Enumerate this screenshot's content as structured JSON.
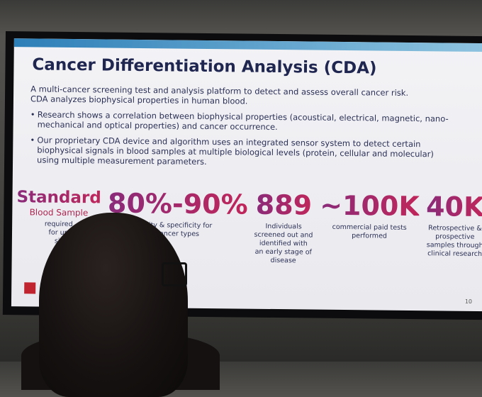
{
  "slide": {
    "title": "Cancer Differentiation Analysis (CDA)",
    "intro": [
      "A multi-cancer screening test and analysis platform to detect and assess overall cancer risk.",
      "CDA analyzes biophysical properties in human blood."
    ],
    "bullets": [
      "Research shows a correlation between biophysical properties (acoustical, electrical, magnetic, nano-mechanical and optical properties) and cancer occurrence.",
      "Our proprietary CDA device and algorithm uses an integrated sensor system to detect certain biophysical signals in blood samples at multiple biological levels (protein, cellular and molecular) using multiple measurement parameters."
    ],
    "stats": [
      {
        "big": "Standard",
        "sub": "Blood Sample",
        "caption": [
          "required",
          "for up",
          "sit"
        ]
      },
      {
        "big": "80%-90%",
        "caption": [
          "ivity & specificity for",
          "cancer types"
        ]
      },
      {
        "big": "889",
        "caption": [
          "Individuals",
          "screened out and",
          "identified with",
          "an early stage of",
          "disease"
        ]
      },
      {
        "big": "~100K",
        "caption": [
          "commercial paid tests",
          "performed"
        ]
      },
      {
        "big": "40K",
        "caption": [
          "Retrospective &",
          "prospective",
          "samples through",
          "clinical research"
        ]
      }
    ],
    "page_number": "10"
  }
}
